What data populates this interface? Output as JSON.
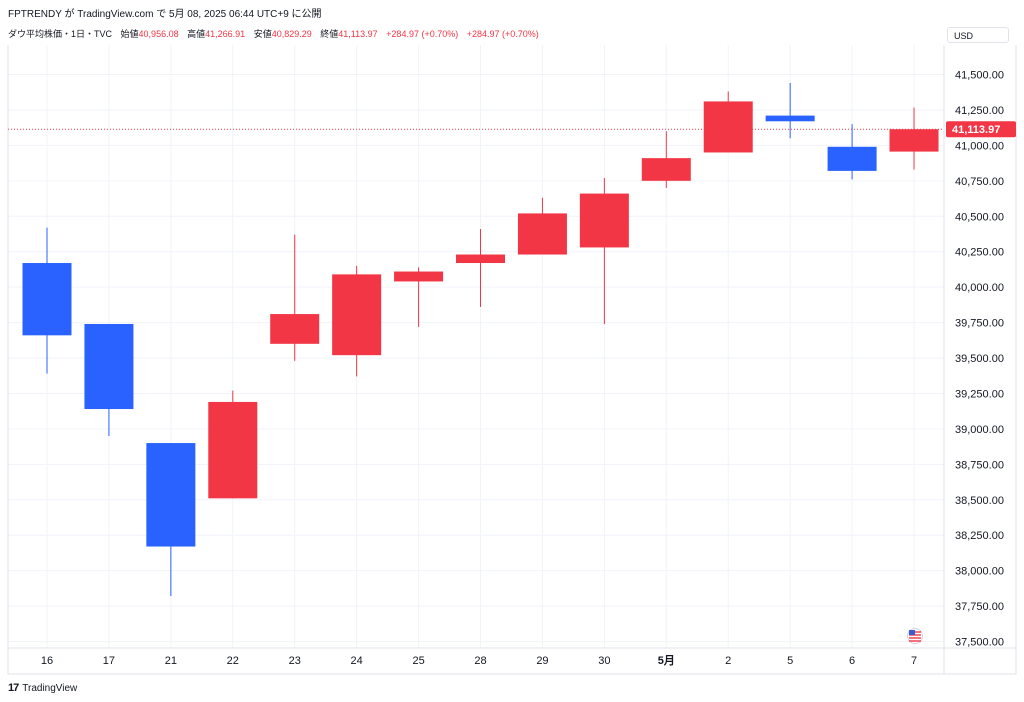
{
  "caption": "FPTRENDY が TradingView.com で 5月 08, 2025 06:44 UTC+9 に公開",
  "legend": {
    "symbol": "ダウ平均株価・1日・TVC",
    "open_label": "始値",
    "open": "40,956.08",
    "high_label": "高値",
    "high": "41,266.91",
    "low_label": "安値",
    "low": "40,829.29",
    "close_label": "終値",
    "close": "41,113.97",
    "change": "+284.97 (+0.70%)",
    "change2": "+284.97 (+0.70%)"
  },
  "currency": "USD",
  "last_price_label": "41,113.97",
  "footer_brand": "TradingView",
  "colors": {
    "up": "#f23645",
    "down": "#2962ff",
    "grid": "#f0f3fa"
  },
  "chart_data": {
    "type": "candlestick",
    "categories": [
      "16",
      "17",
      "21",
      "22",
      "23",
      "24",
      "25",
      "28",
      "29",
      "30",
      "5月",
      "2",
      "5",
      "6",
      "7"
    ],
    "bold_categories": [
      "5月"
    ],
    "series": [
      {
        "open": 40170,
        "high": 40420,
        "low": 39390,
        "close": 39660
      },
      {
        "open": 39740,
        "high": 39740,
        "low": 38950,
        "close": 39140
      },
      {
        "open": 38900,
        "high": 38900,
        "low": 37820,
        "close": 38170
      },
      {
        "open": 38510,
        "high": 39270,
        "low": 38510,
        "close": 39190
      },
      {
        "open": 39600,
        "high": 40370,
        "low": 39480,
        "close": 39810
      },
      {
        "open": 39520,
        "high": 40150,
        "low": 39370,
        "close": 40090
      },
      {
        "open": 40040,
        "high": 40140,
        "low": 39720,
        "close": 40110
      },
      {
        "open": 40170,
        "high": 40410,
        "low": 39860,
        "close": 40230
      },
      {
        "open": 40230,
        "high": 40630,
        "low": 40230,
        "close": 40520
      },
      {
        "open": 40280,
        "high": 40770,
        "low": 39740,
        "close": 40660
      },
      {
        "open": 40750,
        "high": 41100,
        "low": 40700,
        "close": 40910
      },
      {
        "open": 40950,
        "high": 41380,
        "low": 40950,
        "close": 41310
      },
      {
        "open": 41210,
        "high": 41440,
        "low": 41050,
        "close": 41170
      },
      {
        "open": 40990,
        "high": 41150,
        "low": 40760,
        "close": 40820
      },
      {
        "open": 40956.08,
        "high": 41266.91,
        "low": 40829.29,
        "close": 41113.97
      }
    ],
    "y_ticks": [
      37500,
      37750,
      38000,
      38250,
      38500,
      38750,
      39000,
      39250,
      39500,
      39750,
      40000,
      40250,
      40500,
      40750,
      41000,
      41250,
      41500
    ],
    "y_tick_labels": [
      "37,500.00",
      "37,750.00",
      "38,000.00",
      "38,250.00",
      "38,500.00",
      "38,750.00",
      "39,000.00",
      "39,250.00",
      "39,500.00",
      "39,750.00",
      "40,000.00",
      "40,250.00",
      "40,500.00",
      "40,750.00",
      "41,000.00",
      "41,250.00",
      "41,500.00"
    ],
    "ylim": [
      37500,
      41500
    ],
    "last_price": 41113.97,
    "grid": true
  }
}
